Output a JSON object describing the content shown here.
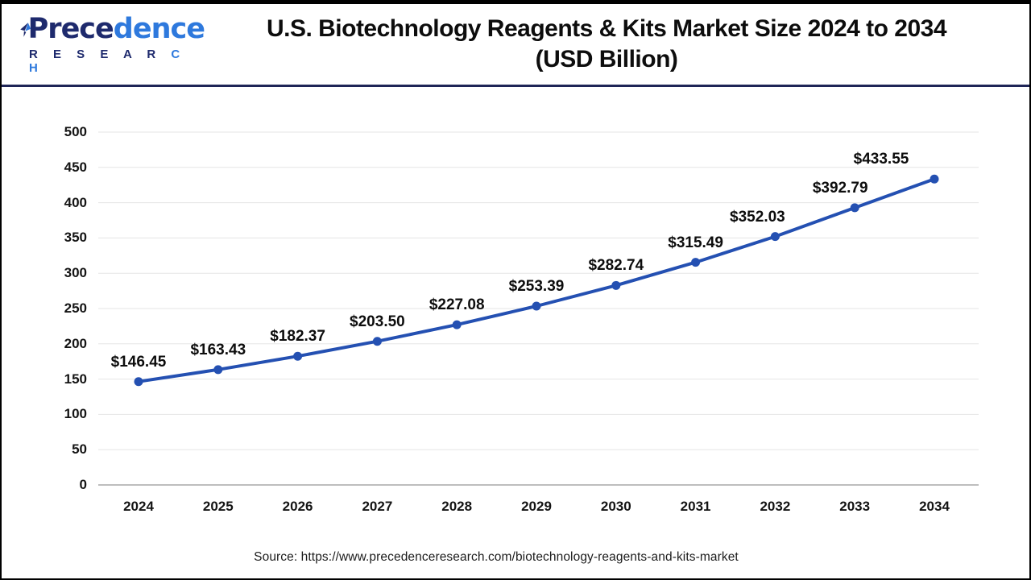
{
  "header": {
    "logo": {
      "name_part1": "Prece",
      "name_part2": "dence",
      "sub_part1": "R E S E A R",
      "sub_part2": " C H",
      "navy": "#1e2a6d",
      "blue": "#2e79dd"
    },
    "title_line1": "U.S. Biotechnology Reagents & Kits Market Size 2024 to 2034",
    "title_line2": "(USD Billion)"
  },
  "chart_data": {
    "type": "line",
    "title": "U.S. Biotechnology Reagents & Kits Market Size 2024 to 2034 (USD Billion)",
    "categories": [
      "2024",
      "2025",
      "2026",
      "2027",
      "2028",
      "2029",
      "2030",
      "2031",
      "2032",
      "2033",
      "2034"
    ],
    "series": [
      {
        "name": "U.S. Biotechnology Reagents & Kits Market Size",
        "values": [
          146.45,
          163.43,
          182.37,
          203.5,
          227.08,
          253.39,
          282.74,
          315.49,
          352.03,
          392.79,
          433.55
        ],
        "labels": [
          "$146.45",
          "$163.43",
          "$182.37",
          "$203.50",
          "$227.08",
          "$253.39",
          "$282.74",
          "$315.49",
          "$352.03",
          "$392.79",
          "$433.55"
        ]
      }
    ],
    "xlabel": "",
    "ylabel": "",
    "ylim": [
      0,
      500
    ],
    "yticks": [
      0,
      50,
      100,
      150,
      200,
      250,
      300,
      350,
      400,
      450,
      500
    ],
    "grid": true,
    "legend": "none",
    "line_color": "#2450b2",
    "marker_color": "#2450b2",
    "gridline_color": "#e5e5e5",
    "axis_line_color": "#a8a8a8"
  },
  "footer": {
    "source": "Source: https://www.precedenceresearch.com/biotechnology-reagents-and-kits-market"
  }
}
